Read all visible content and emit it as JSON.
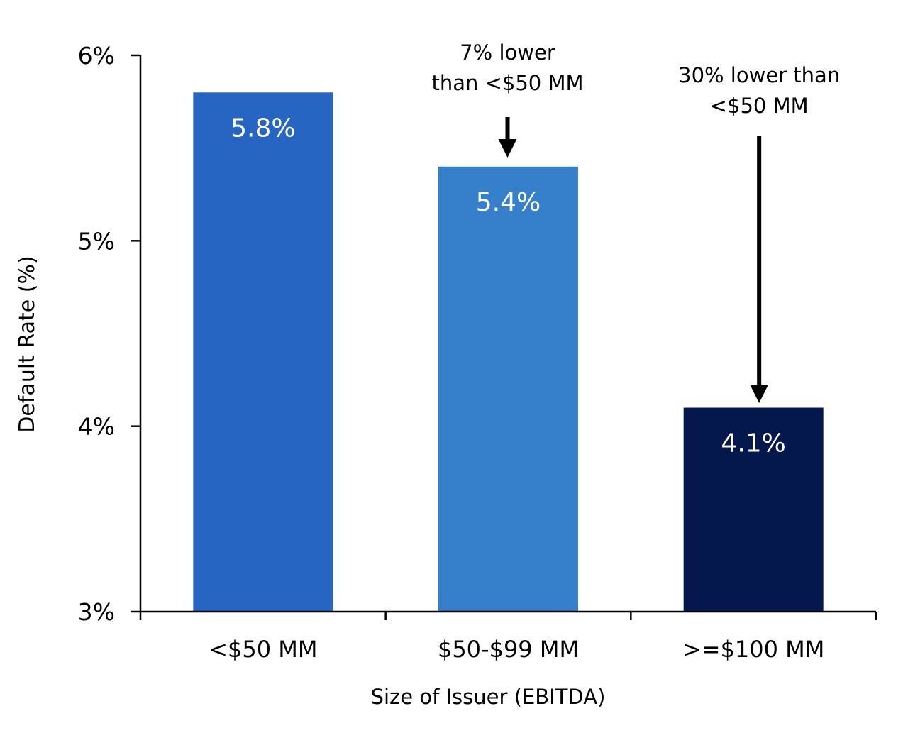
{
  "chart_data": {
    "type": "bar",
    "title": "",
    "xlabel": "Size of Issuer (EBITDA)",
    "ylabel": "Default Rate (%)",
    "ylim": [
      3,
      6
    ],
    "yticks": [
      3,
      4,
      5,
      6
    ],
    "ytick_labels": [
      "3%",
      "4%",
      "5%",
      "6%"
    ],
    "categories": [
      "<$50 MM",
      "$50-$99 MM",
      ">=$100 MM"
    ],
    "values": [
      5.8,
      5.4,
      4.1
    ],
    "data_labels": [
      "5.8%",
      "5.4%",
      "4.1%"
    ],
    "colors": [
      "#2765C2",
      "#357FCB",
      "#04184D"
    ],
    "grid": false,
    "legend": "none",
    "annotations": [
      {
        "lines": [
          "7% lower",
          "than <$50 MM"
        ],
        "target_category": "$50-$99 MM"
      },
      {
        "lines": [
          "30% lower than",
          "<$50 MM"
        ],
        "target_category": ">=$100 MM"
      }
    ]
  }
}
